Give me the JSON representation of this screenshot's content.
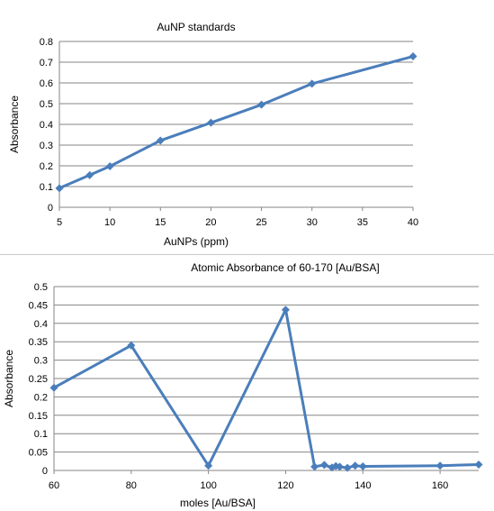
{
  "chart_data": [
    {
      "type": "line",
      "title": "AuNP standards",
      "xlabel": "AuNPs (ppm)",
      "ylabel": "Absorbance",
      "xlim": [
        5,
        40
      ],
      "ylim": [
        0,
        0.8
      ],
      "xticks": [
        5,
        10,
        15,
        20,
        25,
        30,
        35,
        40
      ],
      "yticks": [
        0,
        0.1,
        0.2,
        0.3,
        0.4,
        0.5,
        0.6,
        0.7,
        0.8
      ],
      "grid": "horizontal",
      "legend": "none",
      "marker": "diamond",
      "color": "#4a7ebb",
      "series": [
        {
          "x": [
            5,
            8,
            10,
            15,
            20,
            25,
            30,
            40
          ],
          "y": [
            0.092,
            0.155,
            0.198,
            0.322,
            0.408,
            0.495,
            0.596,
            0.728
          ]
        }
      ]
    },
    {
      "type": "line",
      "title": "Atomic Absorbance of 60-170 [Au/BSA]",
      "xlabel": "moles [Au/BSA]",
      "ylabel": "Absorbance",
      "xlim": [
        60,
        170
      ],
      "ylim": [
        0,
        0.5
      ],
      "xticks": [
        60,
        80,
        100,
        120,
        140,
        160
      ],
      "yticks": [
        0,
        0.05,
        0.1,
        0.15,
        0.2,
        0.25,
        0.3,
        0.35,
        0.4,
        0.45,
        0.5
      ],
      "grid": "horizontal",
      "legend": "none",
      "marker": "diamond",
      "color": "#4a7ebb",
      "series": [
        {
          "x": [
            60,
            80,
            100,
            120,
            127.5,
            130,
            132,
            133,
            134,
            136,
            138,
            140,
            160,
            170
          ],
          "y": [
            0.225,
            0.34,
            0.013,
            0.437,
            0.01,
            0.015,
            0.008,
            0.012,
            0.01,
            0.007,
            0.013,
            0.011,
            0.013,
            0.016
          ]
        }
      ]
    }
  ]
}
